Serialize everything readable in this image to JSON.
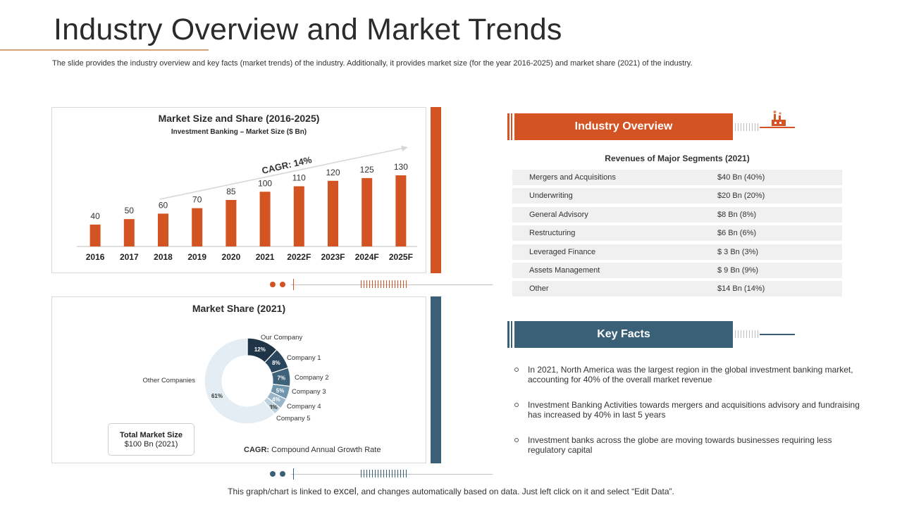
{
  "title": "Industry Overview and Market Trends",
  "subtitle": "The slide provides the industry overview and key facts (market trends) of the industry. Additionally, it provides market size (for the year 2016-2025) and market share (2021) of the industry.",
  "colors": {
    "orange": "#d35322",
    "blue": "#3a6078",
    "grey_row": "#f0f0f0"
  },
  "chart_data": [
    {
      "type": "bar",
      "title": "Market Size and Share (2016-2025)",
      "subtitle": "Investment Banking – Market Size ($ Bn)",
      "categories": [
        "2016",
        "2017",
        "2018",
        "2019",
        "2020",
        "2021",
        "2022F",
        "2023F",
        "2024F",
        "2025F"
      ],
      "values": [
        40,
        50,
        60,
        70,
        85,
        100,
        110,
        120,
        125,
        130
      ],
      "annotation": "CAGR: 14%",
      "ylim": [
        0,
        140
      ],
      "grid": false,
      "color": "#d35322"
    },
    {
      "type": "pie",
      "title": "Market Share (2021)",
      "donut": true,
      "slices": [
        {
          "name": "Our Company",
          "value": 12,
          "label": "12%",
          "color": "#1f3446"
        },
        {
          "name": "Company 1",
          "value": 8,
          "label": "8%",
          "color": "#2a465c"
        },
        {
          "name": "Company 2",
          "value": 7,
          "label": "7%",
          "color": "#3e6379"
        },
        {
          "name": "Company 3",
          "value": 5,
          "label": "5%",
          "color": "#6f95ad"
        },
        {
          "name": "Company 4",
          "value": 4,
          "label": "4%",
          "color": "#98b6c8"
        },
        {
          "name": "Company 5",
          "value": 3,
          "label": "3%",
          "color": "#bcd2de"
        },
        {
          "name": "Other Companies",
          "value": 61,
          "label": "61%",
          "color": "#e3edf3"
        }
      ]
    }
  ],
  "market_total": {
    "label": "Total Market Size",
    "value": "$100 Bn (2021)"
  },
  "cagr_note": {
    "bold": "CAGR:",
    "text": " Compound  Annual Growth Rate"
  },
  "industry_overview": {
    "header": "Industry Overview",
    "table_title": "Revenues of Major Segments (2021)",
    "rows": [
      {
        "name": "Mergers and Acquisitions",
        "value": "$40 Bn (40%)"
      },
      {
        "name": "Underwriting",
        "value": "$20 Bn (20%)"
      },
      {
        "name": "General Advisory",
        "value": "$8 Bn (8%)"
      },
      {
        "name": "Restructuring",
        "value": "$6 Bn (6%)"
      },
      {
        "name": "Leveraged Finance",
        "value": "$ 3 Bn (3%)"
      },
      {
        "name": "Assets Management",
        "value": "$ 9 Bn (9%)"
      },
      {
        "name": "Other",
        "value": "$14 Bn (14%)"
      }
    ],
    "icon": "factory-icon"
  },
  "key_facts": {
    "header": "Key Facts",
    "items": [
      "In 2021, North America was the largest region in the global investment banking market, accounting for 40% of the overall market revenue",
      "Investment Banking Activities towards mergers and acquisitions advisory and fundraising has increased by 40% in last 5 years",
      "Investment banks across the globe are moving towards businesses requiring less regulatory capital"
    ]
  },
  "footer": {
    "before": "This graph/chart is linked to ",
    "excel": "excel",
    "after": ", and changes automatically based on data. Just left click on it and select “Edit Data”."
  }
}
